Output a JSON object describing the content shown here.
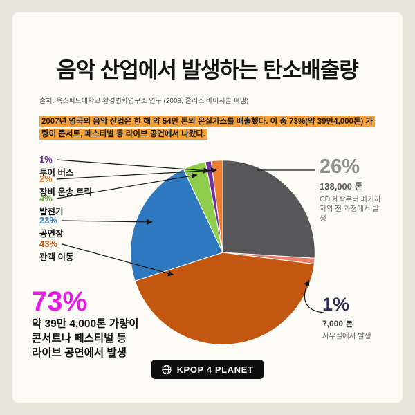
{
  "header": {
    "title": "음악 산업에서 발생하는 탄소배출량",
    "source": "출처: 옥스퍼드대학교 환경변화연구소 연구 (2008, 줄리스 바이시클 펴냄)",
    "intro": "2007년 영국의 음악 산업은 한 해 약 54만 톤의 온실가스를 배출했다. 이 중 73%(약 39만4,000톤) 가량이 콘서트, 페스티벌 등 라이브 공연에서 나왔다.",
    "highlight_color": "#F2A13B"
  },
  "legend": [
    {
      "pct": "1%",
      "name": "투어 버스",
      "color": "#7030A0"
    },
    {
      "pct": "2%",
      "name": "장비 운송 트럭",
      "color": "#ED7D31"
    },
    {
      "pct": "4%",
      "name": "발전기",
      "color": "#70AD47"
    },
    {
      "pct": "23%",
      "name": "공연장",
      "color": "#2E78C0"
    },
    {
      "pct": "43%",
      "name": "관객 이동",
      "color": "#C35711"
    }
  ],
  "callouts": {
    "cd": {
      "pct": "26%",
      "tons": "138,000 톤",
      "desc": "CD 제작부터 폐기까지의 전 과정에서 발생",
      "color": "#8F8F8F"
    },
    "office": {
      "pct": "1%",
      "tons": "7,000 톤",
      "desc": "사무실에서 발생",
      "color": "#2F2C5C"
    }
  },
  "stat73": {
    "pct": "73%",
    "color": "#E61BE6",
    "lines": [
      "약 39만 4,000톤 가량이",
      "콘서트나 페스티벌 등",
      "라이브 공연에서 발생"
    ]
  },
  "badge": {
    "label": "KPOP 4 PLANET"
  },
  "chart_data": {
    "type": "pie",
    "title": "음악 산업에서 발생하는 탄소배출량",
    "unit": "%",
    "start_angle": "top",
    "direction": "clockwise",
    "slices": [
      {
        "label": "CD 제작부터 폐기까지의 전 과정에서 발생",
        "value": 26,
        "tons": "138,000 톤",
        "color": "#57575A"
      },
      {
        "label": "사무실에서 발생",
        "value": 1,
        "tons": "7,000 톤",
        "color": "#E8826E"
      },
      {
        "label": "관객 이동",
        "value": 43,
        "color": "#C35711"
      },
      {
        "label": "공연장",
        "value": 23,
        "color": "#2E78C0"
      },
      {
        "label": "발전기",
        "value": 4,
        "color": "#8FCE4C"
      },
      {
        "label": "투어 버스",
        "value": 1,
        "color": "#7030A0"
      },
      {
        "label": "장비 운송 트럭",
        "value": 2,
        "color": "#ED7D31"
      }
    ]
  }
}
